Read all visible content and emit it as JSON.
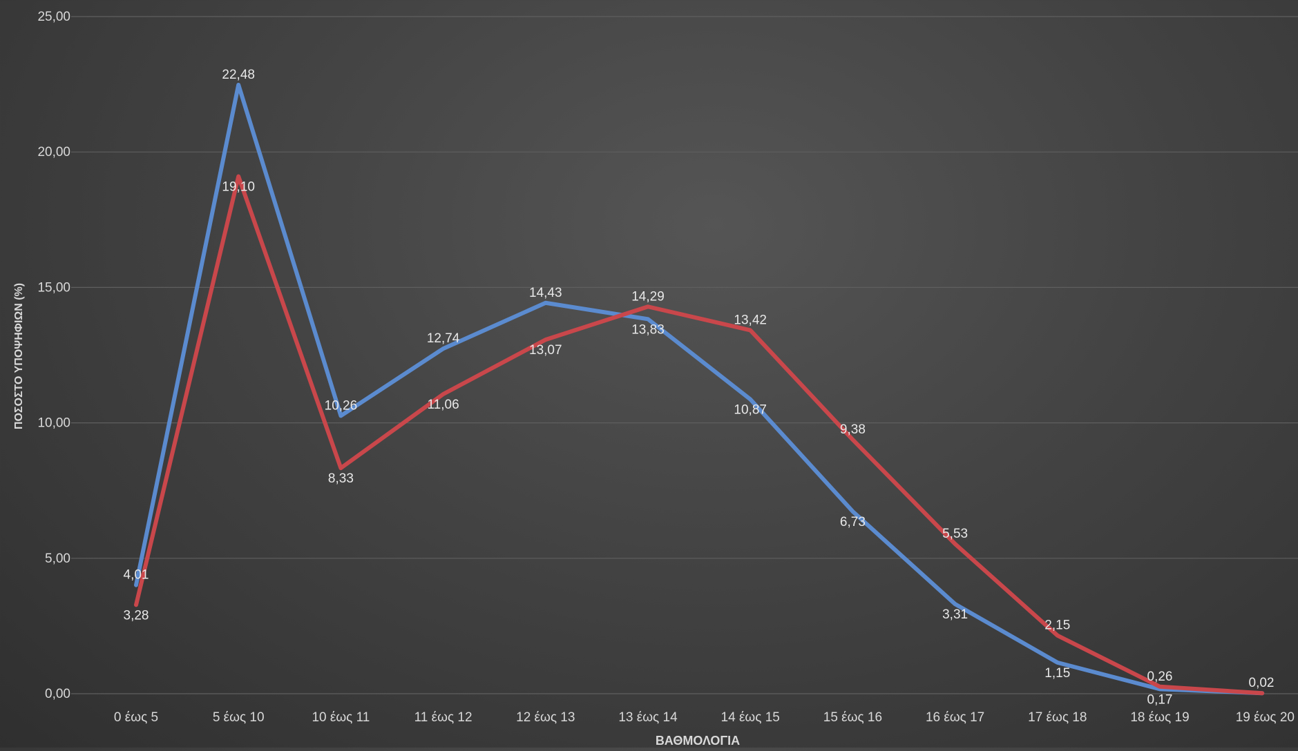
{
  "chart_data": {
    "type": "line",
    "title": "",
    "xlabel": "ΒΑΘΜΟΛΟΓΙΑ",
    "ylabel": "ΠΟΣΟΣΤΟ ΥΠΟΨΗΦΙΩΝ (%)",
    "ylim": [
      0,
      25
    ],
    "yticks": [
      "0,00",
      "5,00",
      "10,00",
      "15,00",
      "20,00",
      "25,00"
    ],
    "categories": [
      "0 έως 5",
      "5 έως 10",
      "10 έως 11",
      "11 έως 12",
      "12 έως 13",
      "13 έως 14",
      "14 έως 15",
      "15 έως 16",
      "16 έως 17",
      "17 έως 18",
      "18 έως 19",
      "19 έως 20"
    ],
    "grid": true,
    "legend": "none",
    "series": [
      {
        "color": "#5b8bcf",
        "values": [
          4.01,
          22.48,
          10.26,
          12.74,
          14.43,
          13.83,
          10.87,
          6.73,
          3.31,
          1.15,
          0.17,
          0.02
        ],
        "labels": [
          "4,01",
          "22,48",
          "10,26",
          "12,74",
          "14,43",
          "13,83",
          "10,87",
          "6,73",
          "3,31",
          "1,15",
          "0,17",
          ""
        ]
      },
      {
        "color": "#c9474b",
        "values": [
          3.28,
          19.1,
          8.33,
          11.06,
          13.07,
          14.29,
          13.42,
          9.38,
          5.53,
          2.15,
          0.26,
          0.02
        ],
        "labels": [
          "3,28",
          "19,10",
          "8,33",
          "11,06",
          "13,07",
          "14,29",
          "13,42",
          "9,38",
          "5,53",
          "2,15",
          "0,26",
          "0,02"
        ]
      }
    ]
  }
}
